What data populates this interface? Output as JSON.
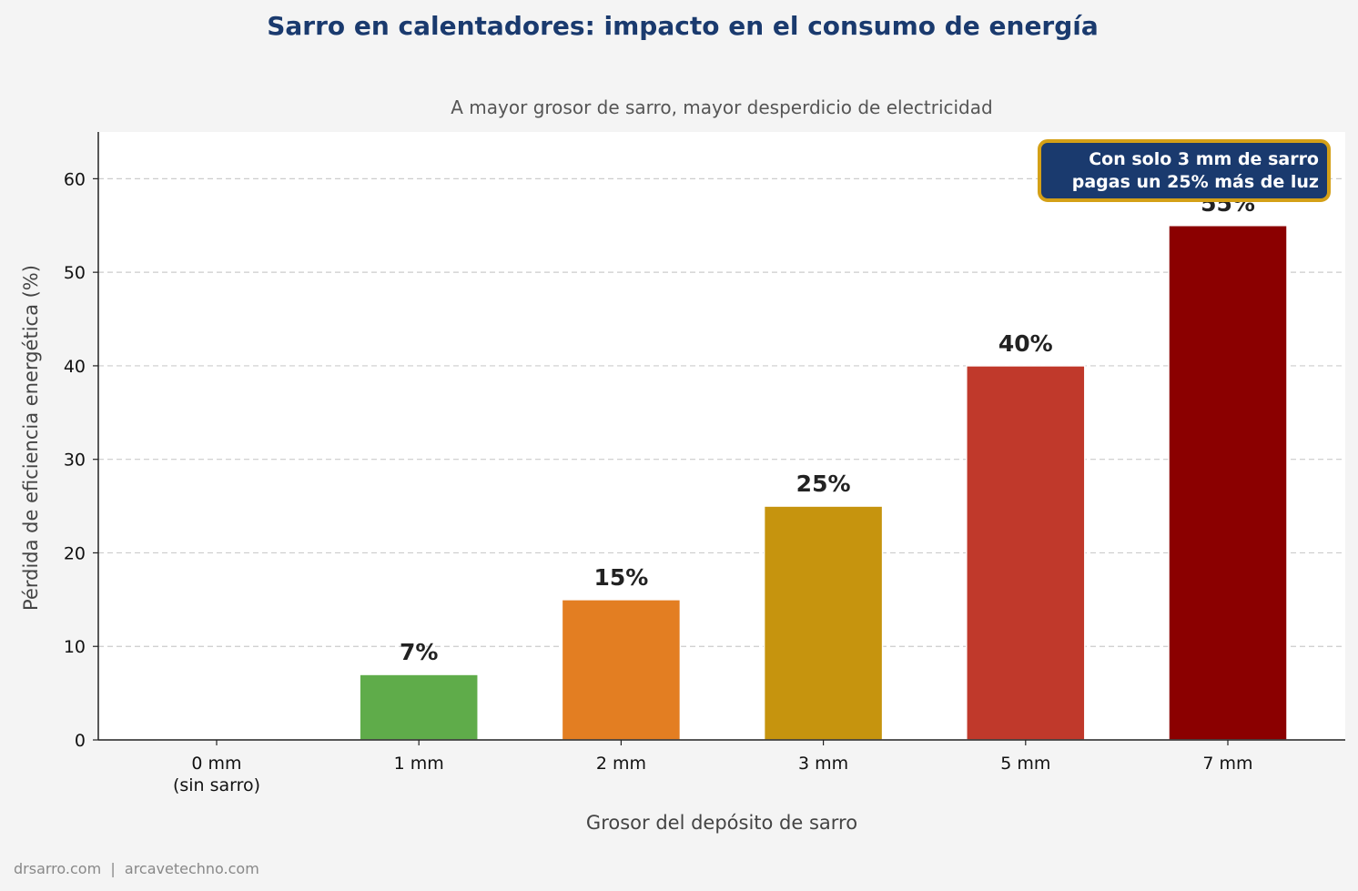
{
  "chart_data": {
    "type": "bar",
    "title": "Sarro en calentadores: impacto en el consumo de energía",
    "subtitle": "A mayor grosor de sarro, mayor desperdicio de electricidad",
    "xlabel": "Grosor del depósito de sarro",
    "ylabel": "Pérdida de eficiencia energética (%)",
    "categories": [
      [
        "0 mm",
        "(sin sarro)"
      ],
      [
        "1 mm"
      ],
      [
        "2 mm"
      ],
      [
        "3 mm"
      ],
      [
        "5 mm"
      ],
      [
        "7 mm"
      ]
    ],
    "values": [
      0,
      7,
      15,
      25,
      40,
      55
    ],
    "value_labels": [
      "",
      "7%",
      "15%",
      "25%",
      "40%",
      "55%"
    ],
    "colors": [
      "#2e8b3e",
      "#5fac4a",
      "#e37e22",
      "#c6940e",
      "#c0392b",
      "#8b0000"
    ],
    "ylim": [
      0,
      65
    ],
    "yticks": [
      0,
      10,
      20,
      30,
      40,
      50,
      60
    ],
    "grid": true,
    "annotation": {
      "lines": [
        "Con solo 3 mm de sarro",
        "pagas un 25% más de luz"
      ],
      "position": "top-right",
      "fill": "#1a3a6e",
      "border": "#d4a017"
    }
  },
  "footer": "drsarro.com  |  arcavetechno.com"
}
